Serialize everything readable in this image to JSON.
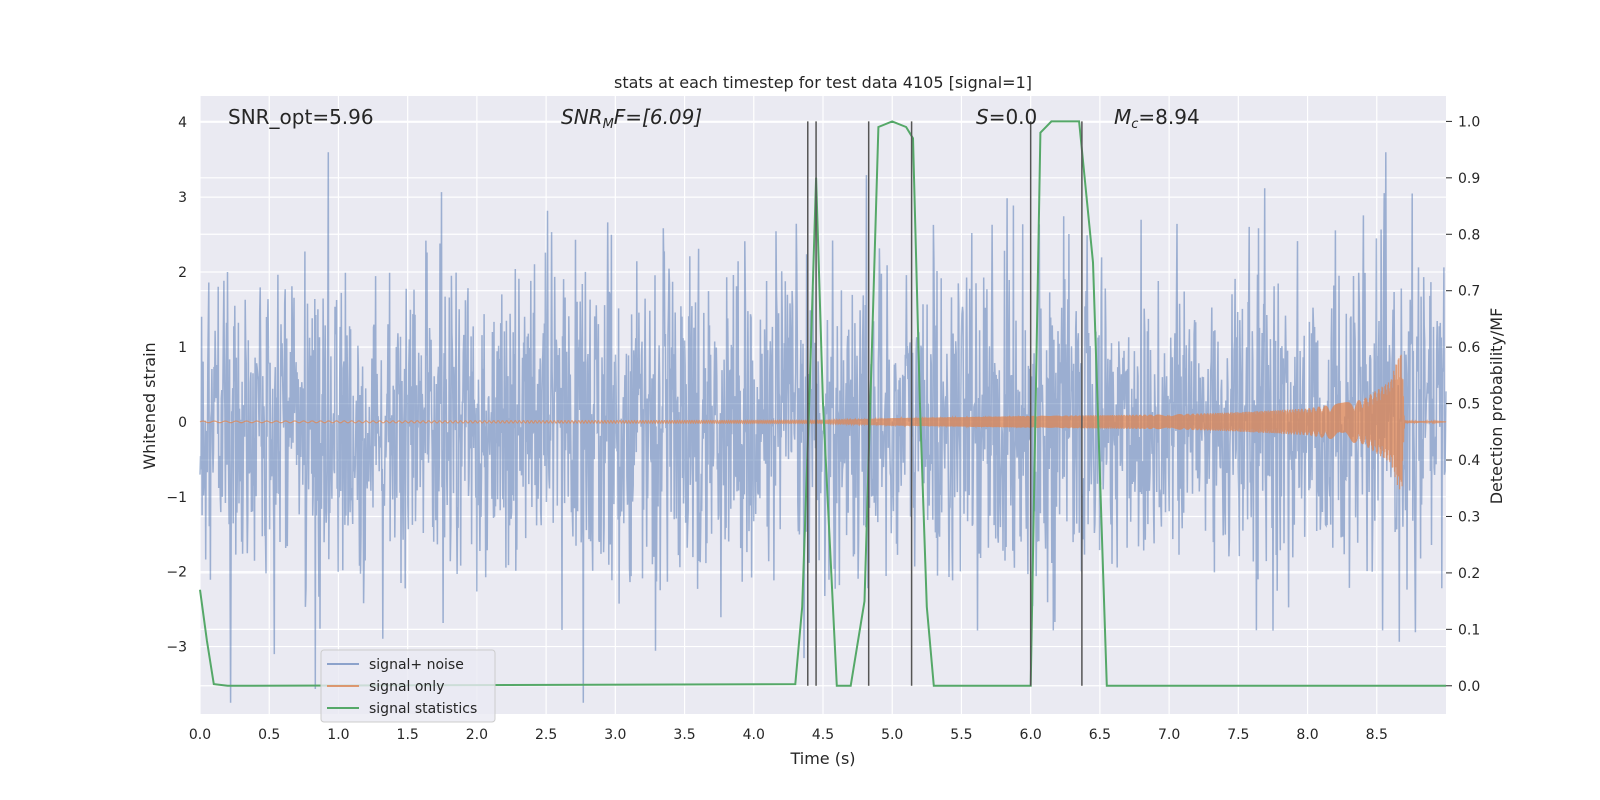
{
  "chart_data": {
    "type": "line",
    "title": "stats at each timestep for test data 4105 [signal=1]",
    "xlabel": "Time (s)",
    "ylabel": "Whitened strain",
    "ylabel_right": "Detection probability/MF",
    "xlim": [
      0.0,
      9.0
    ],
    "ylim": [
      -3.9,
      4.35
    ],
    "ylim_right": [
      -0.05,
      1.045
    ],
    "x_ticks": [
      0.0,
      0.5,
      1.0,
      1.5,
      2.0,
      2.5,
      3.0,
      3.5,
      4.0,
      4.5,
      5.0,
      5.5,
      6.0,
      6.5,
      7.0,
      7.5,
      8.0,
      8.5
    ],
    "x_tick_labels": [
      "0.0",
      "0.5",
      "1.0",
      "1.5",
      "2.0",
      "2.5",
      "3.0",
      "3.5",
      "4.0",
      "4.5",
      "5.0",
      "5.5",
      "6.0",
      "6.5",
      "7.0",
      "7.5",
      "8.0",
      "8.5"
    ],
    "y_ticks": [
      -3,
      -2,
      -1,
      0,
      1,
      2,
      3,
      4
    ],
    "y_tick_labels": [
      "−3",
      "−2",
      "−1",
      "0",
      "1",
      "2",
      "3",
      "4"
    ],
    "y_right_ticks": [
      0.0,
      0.1,
      0.2,
      0.3,
      0.4,
      0.5,
      0.6,
      0.7,
      0.8,
      0.9,
      1.0
    ],
    "y_right_tick_labels": [
      "0.0",
      "0.1",
      "0.2",
      "0.3",
      "0.4",
      "0.5",
      "0.6",
      "0.7",
      "0.8",
      "0.9",
      "1.0"
    ],
    "grid": true,
    "legend_position": "lower-left",
    "annotations": {
      "snr_opt": "SNR_opt=5.96",
      "snr_mf_main": "SNR",
      "snr_mf_sub": "M",
      "snr_mf_rest": "F=[6.09]",
      "s_main": "S",
      "s_rest": "=0.0",
      "mc_main": "M",
      "mc_sub": "c",
      "mc_rest": "=8.94"
    },
    "series": [
      {
        "name": "signal+ noise",
        "color": "#4c72b0",
        "axis": "left",
        "description_values": "whitened noise, approx. Gaussian with std ~1, peaks up to about 3.6 and down to about -3.7"
      },
      {
        "name": "signal only",
        "color": "#dd8452",
        "axis": "left",
        "envelope": {
          "t": [
            0.0,
            4.5,
            5.0,
            6.0,
            7.0,
            7.5,
            8.0,
            8.4,
            8.6,
            8.65,
            8.68,
            8.7,
            9.0
          ],
          "amplitude": [
            0.01,
            0.02,
            0.05,
            0.08,
            0.1,
            0.13,
            0.18,
            0.3,
            0.55,
            0.85,
            0.95,
            0.02,
            0.0
          ]
        }
      },
      {
        "name": "signal statistics",
        "color": "#55a868",
        "axis": "right",
        "x": [
          0.0,
          0.05,
          0.1,
          0.2,
          4.3,
          4.35,
          4.4,
          4.45,
          4.5,
          4.6,
          4.7,
          4.8,
          4.9,
          5.0,
          5.1,
          5.15,
          5.2,
          5.25,
          5.3,
          5.9,
          6.0,
          6.07,
          6.15,
          6.2,
          6.35,
          6.45,
          6.55,
          6.6,
          6.7,
          9.0
        ],
        "y": [
          0.17,
          0.08,
          0.003,
          0.0,
          0.003,
          0.14,
          0.5,
          0.9,
          0.5,
          0.0,
          0.0,
          0.15,
          0.99,
          1.0,
          0.99,
          0.97,
          0.5,
          0.14,
          0.0,
          0.0,
          0.0,
          0.98,
          1.0,
          1.0,
          1.0,
          0.75,
          0.0,
          0.0,
          0.0,
          0.0
        ]
      }
    ],
    "vertical_lines_x": [
      4.39,
      4.45,
      4.83,
      5.14,
      6.0,
      6.37
    ],
    "vertical_line_color": "#555555"
  }
}
